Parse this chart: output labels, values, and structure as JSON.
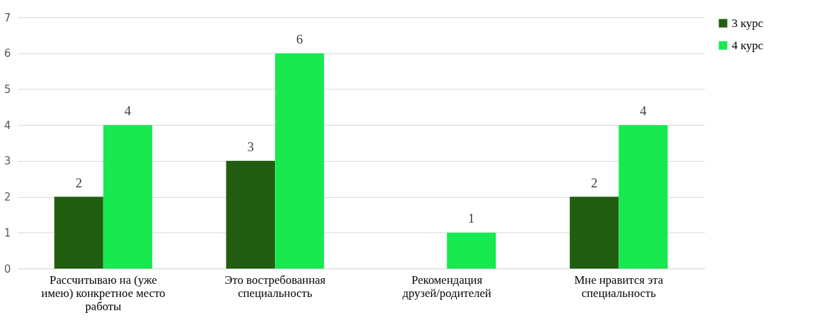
{
  "chart_data": {
    "type": "bar",
    "categories": [
      "Рассчитываю на (уже имею) конкретное место работы",
      "Это востребованная специальность",
      "Рекомендация друзей/родителей",
      "Мне нравится эта специальность"
    ],
    "series": [
      {
        "name": "3 курс",
        "color": "#215e11",
        "values": [
          2,
          3,
          null,
          2
        ]
      },
      {
        "name": "4 курс",
        "color": "#17e94f",
        "values": [
          4,
          6,
          1,
          4
        ]
      }
    ],
    "ylim": [
      0,
      7
    ],
    "yticks": [
      0,
      1,
      2,
      3,
      4,
      5,
      6,
      7
    ],
    "grid": "y",
    "legend": "right",
    "data_labels": true
  }
}
